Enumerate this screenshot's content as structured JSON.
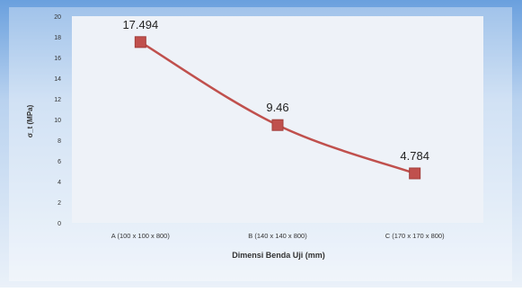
{
  "chart_data": {
    "type": "line",
    "title": "",
    "xlabel": "Dimensi Benda Uji (mm)",
    "ylabel": "σ_t (MPa)",
    "categories": [
      "A (100 x 100 x 800)",
      "B (140 x 140 x 800)",
      "C (170 x 170 x 800)"
    ],
    "series": [
      {
        "values": [
          17.494,
          9.46,
          4.784
        ],
        "labels": [
          "17.494",
          "9.46",
          "4.784"
        ]
      }
    ],
    "ylim": [
      0,
      20
    ],
    "yticks": [
      0,
      2,
      4,
      6,
      8,
      10,
      12,
      14,
      16,
      18,
      20
    ],
    "grid": false,
    "legend": "none",
    "colors": {
      "frame_top": "#6aa0de",
      "frame_bottom": "#dfeaf6",
      "plot_bg": "#eef2f8",
      "line": "#c0504d",
      "marker": "#c0504d",
      "text": "#333333",
      "axis": "#7f7f7f"
    }
  }
}
